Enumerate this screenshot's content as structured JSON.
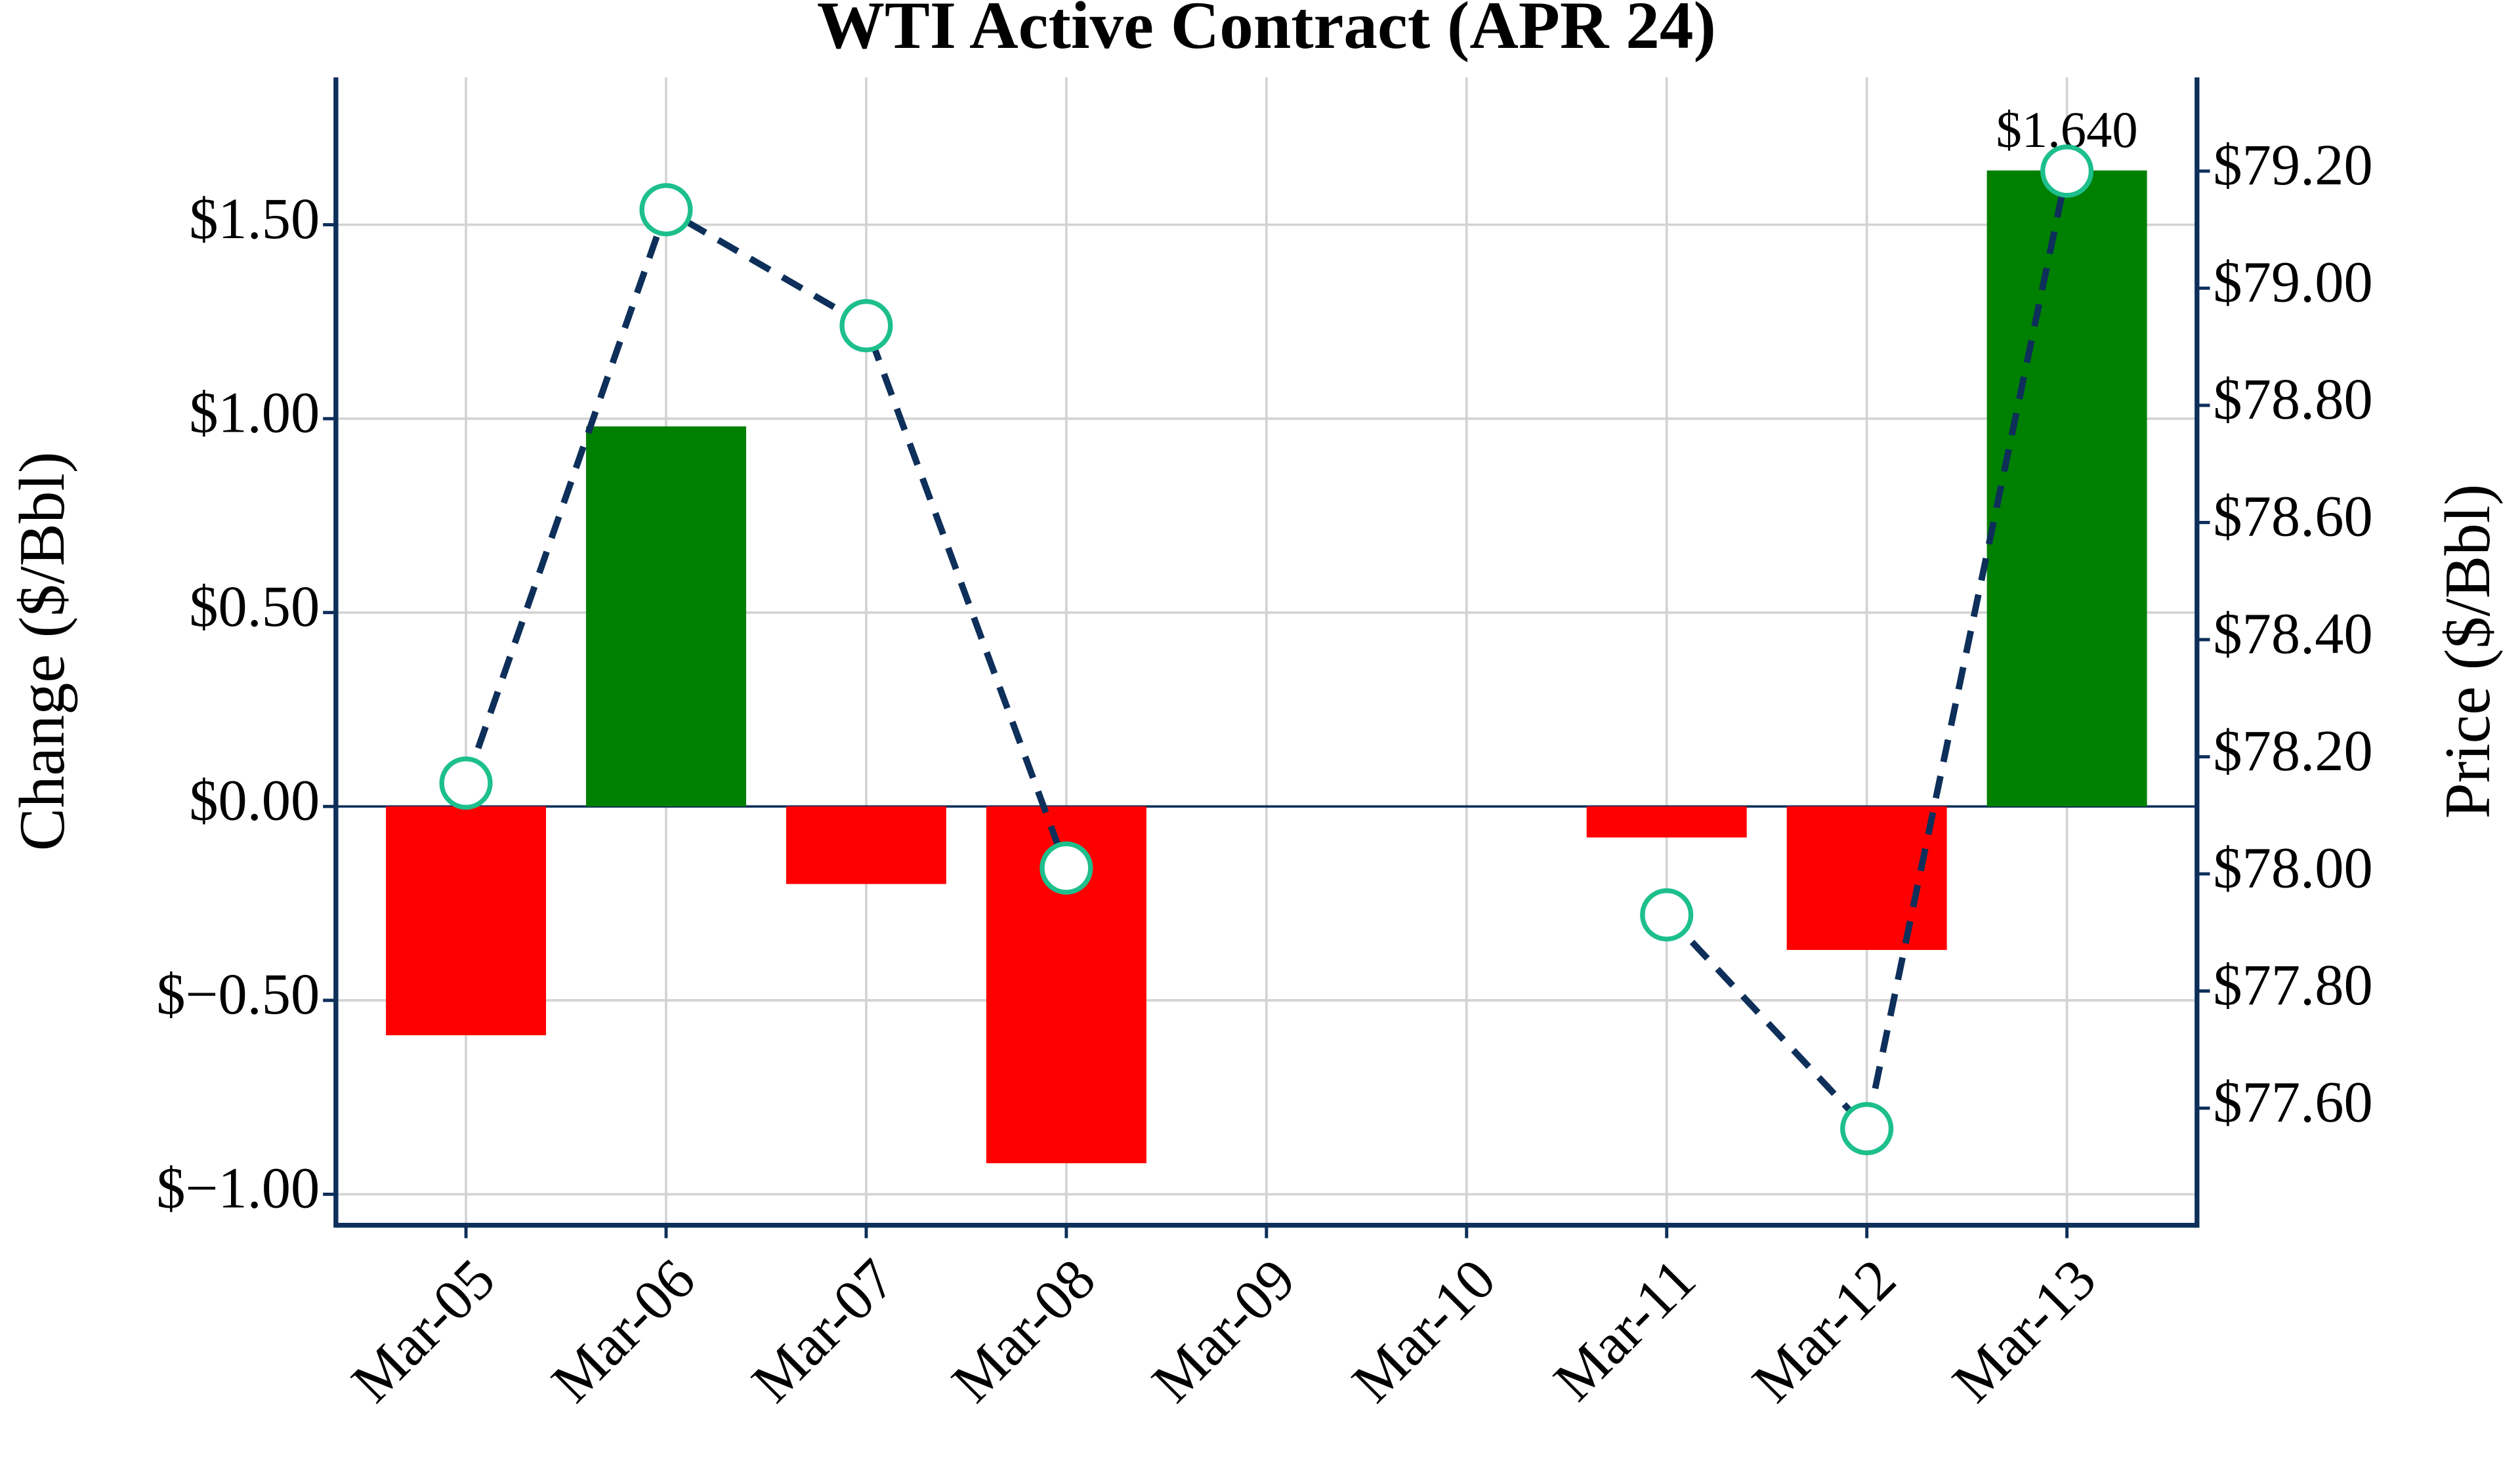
{
  "chart_data": {
    "type": "bar",
    "title": "WTI Active Contract (APR 24)",
    "y_label": "Change ($/Bbl)",
    "y2_label": "Price ($/Bbl)",
    "categories": [
      "Mar-05",
      "Mar-06",
      "Mar-07",
      "Mar-08",
      "Mar-09",
      "Mar-10",
      "Mar-11",
      "Mar-12",
      "Mar-13"
    ],
    "series": [
      {
        "type": "bar",
        "positive_color": "#008000",
        "negative_color": "#ff0000",
        "values": [
          -0.59,
          0.98,
          -0.2,
          -0.92,
          null,
          null,
          -0.08,
          -0.37,
          1.64
        ],
        "value_labels": [
          null,
          null,
          null,
          null,
          null,
          null,
          null,
          null,
          "$1.640"
        ]
      },
      {
        "type": "line",
        "axis": "y2",
        "color": "#0d2f5a",
        "marker_color": "#1dbf8c",
        "values": [
          78.155,
          79.134,
          78.936,
          78.01,
          null,
          null,
          77.93,
          77.565,
          79.2
        ]
      }
    ],
    "ylim": [
      -1.08,
      1.88
    ],
    "yticks": [
      {
        "value": -1.0,
        "label": "$−1.00"
      },
      {
        "value": -0.5,
        "label": "$−0.50"
      },
      {
        "value": 0,
        "label": "$0.00"
      },
      {
        "value": 0.5,
        "label": "$0.50"
      },
      {
        "value": 1.0,
        "label": "$1.00"
      },
      {
        "value": 1.5,
        "label": "$1.50"
      }
    ],
    "y2lim": [
      77.4,
      79.36
    ],
    "y2ticks": [
      {
        "value": 77.6,
        "label": "$77.60"
      },
      {
        "value": 77.8,
        "label": "$77.80"
      },
      {
        "value": 78.0,
        "label": "$78.00"
      },
      {
        "value": 78.2,
        "label": "$78.20"
      },
      {
        "value": 78.4,
        "label": "$78.40"
      },
      {
        "value": 78.6,
        "label": "$78.60"
      },
      {
        "value": 78.8,
        "label": "$78.80"
      },
      {
        "value": 79.0,
        "label": "$79.00"
      },
      {
        "value": 79.2,
        "label": "$79.20"
      }
    ],
    "grid": true
  }
}
